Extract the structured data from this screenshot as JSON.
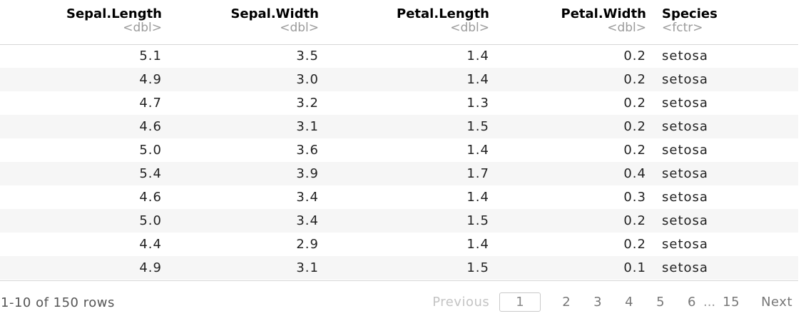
{
  "table": {
    "columns": [
      {
        "name": "Sepal.Length",
        "type": "<dbl>",
        "align": "num"
      },
      {
        "name": "Sepal.Width",
        "type": "<dbl>",
        "align": "num"
      },
      {
        "name": "Petal.Length",
        "type": "<dbl>",
        "align": "num"
      },
      {
        "name": "Petal.Width",
        "type": "<dbl>",
        "align": "num"
      },
      {
        "name": "Species",
        "type": "<fctr>",
        "align": "fac"
      }
    ],
    "rows": [
      [
        "5.1",
        "3.5",
        "1.4",
        "0.2",
        "setosa"
      ],
      [
        "4.9",
        "3.0",
        "1.4",
        "0.2",
        "setosa"
      ],
      [
        "4.7",
        "3.2",
        "1.3",
        "0.2",
        "setosa"
      ],
      [
        "4.6",
        "3.1",
        "1.5",
        "0.2",
        "setosa"
      ],
      [
        "5.0",
        "3.6",
        "1.4",
        "0.2",
        "setosa"
      ],
      [
        "5.4",
        "3.9",
        "1.7",
        "0.4",
        "setosa"
      ],
      [
        "4.6",
        "3.4",
        "1.4",
        "0.3",
        "setosa"
      ],
      [
        "5.0",
        "3.4",
        "1.5",
        "0.2",
        "setosa"
      ],
      [
        "4.4",
        "2.9",
        "1.4",
        "0.2",
        "setosa"
      ],
      [
        "4.9",
        "3.1",
        "1.5",
        "0.1",
        "setosa"
      ]
    ]
  },
  "footer": {
    "row_info": "1-10 of 150 rows",
    "previous_label": "Previous",
    "next_label": "Next",
    "pages": [
      "1",
      "2",
      "3",
      "4",
      "5",
      "6"
    ],
    "ellipsis": "...",
    "last_page": "15",
    "current_page": "1"
  }
}
